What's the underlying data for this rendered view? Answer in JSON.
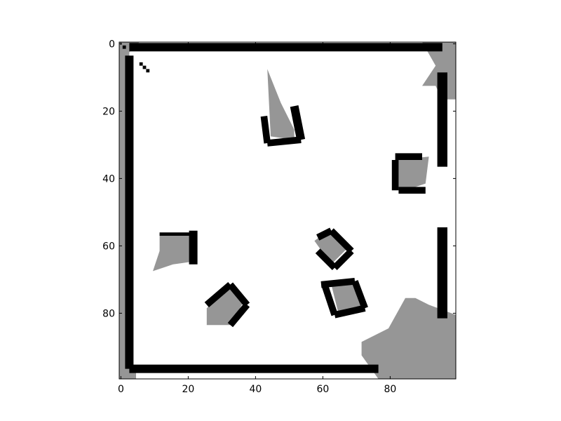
{
  "colors": {
    "free": "#ffffff",
    "unknown": "#969696",
    "occupied": "#000000",
    "axes": "#000000",
    "figure_background": "#ffffff"
  },
  "chart_data": {
    "type": "heatmap",
    "title": "",
    "xlabel": "",
    "ylabel": "",
    "grid": false,
    "colorbar": false,
    "shape": [
      100,
      100
    ],
    "xlim": [
      0,
      100
    ],
    "ylim": [
      100,
      0
    ],
    "x_ticks": [
      "0",
      "20",
      "40",
      "60",
      "80"
    ],
    "y_ticks": [
      "0",
      "20",
      "40",
      "60",
      "80"
    ],
    "legend_classes": [
      "free",
      "unknown",
      "occupied"
    ],
    "unknown_regions": [
      {
        "name": "left-margin",
        "points": [
          [
            0,
            0
          ],
          [
            3,
            0
          ],
          [
            3,
            100
          ],
          [
            0,
            100
          ]
        ]
      },
      {
        "name": "top-left-corner-wedge",
        "points": [
          [
            0,
            0
          ],
          [
            6,
            0
          ],
          [
            3,
            3
          ]
        ]
      },
      {
        "name": "top-right-corner-wedge",
        "points": [
          [
            90,
            0
          ],
          [
            100,
            0
          ],
          [
            100,
            17
          ],
          [
            96,
            17
          ],
          [
            94,
            13
          ],
          [
            90,
            13
          ],
          [
            94,
            7
          ]
        ]
      },
      {
        "name": "bottom-right-fan",
        "points": [
          [
            72,
            89
          ],
          [
            80,
            85
          ],
          [
            85,
            76
          ],
          [
            88,
            76
          ],
          [
            92,
            78
          ],
          [
            100,
            81
          ],
          [
            100,
            100
          ],
          [
            77,
            100
          ],
          [
            72,
            93
          ]
        ]
      },
      {
        "name": "bottom-left-corner",
        "points": [
          [
            0,
            97
          ],
          [
            5,
            97
          ],
          [
            5,
            100
          ],
          [
            0,
            100
          ]
        ]
      },
      {
        "name": "top-triangle",
        "points": [
          [
            44,
            8
          ],
          [
            48,
            18
          ],
          [
            52,
            26
          ],
          [
            52,
            29
          ],
          [
            45,
            28
          ]
        ]
      },
      {
        "name": "right-box-interior",
        "points": [
          [
            82,
            35
          ],
          [
            92,
            34
          ],
          [
            91,
            42
          ],
          [
            85,
            44
          ],
          [
            83,
            44
          ]
        ]
      },
      {
        "name": "left-box-interior",
        "points": [
          [
            12,
            57
          ],
          [
            23,
            57
          ],
          [
            23,
            65
          ],
          [
            16,
            66
          ],
          [
            10,
            68
          ],
          [
            12,
            62
          ]
        ]
      },
      {
        "name": "center-diamond-interior",
        "points": [
          [
            58,
            59
          ],
          [
            62,
            56
          ],
          [
            68,
            61
          ],
          [
            63,
            66
          ]
        ]
      },
      {
        "name": "lower-right-box-interior",
        "points": [
          [
            63,
            72
          ],
          [
            70,
            71
          ],
          [
            72,
            79
          ],
          [
            65,
            80
          ]
        ]
      },
      {
        "name": "lower-left-box-interior",
        "points": [
          [
            26,
            79
          ],
          [
            33,
            73
          ],
          [
            37,
            77
          ],
          [
            33,
            84
          ],
          [
            26,
            84
          ]
        ]
      }
    ],
    "occupied_walls": [
      {
        "name": "top-wall",
        "points": [
          [
            3,
            1.5
          ],
          [
            96,
            1.5
          ]
        ],
        "width": 2.5
      },
      {
        "name": "left-wall",
        "points": [
          [
            3,
            4
          ],
          [
            3,
            97
          ]
        ],
        "width": 2.5
      },
      {
        "name": "bottom-wall",
        "points": [
          [
            3,
            97
          ],
          [
            77,
            97
          ]
        ],
        "width": 2.5
      },
      {
        "name": "right-wall-upper",
        "points": [
          [
            96,
            9
          ],
          [
            96,
            37
          ]
        ],
        "width": 3
      },
      {
        "name": "right-wall-lower",
        "points": [
          [
            96,
            55
          ],
          [
            96,
            82
          ]
        ],
        "width": 3
      },
      {
        "name": "top-triangle-wall-right",
        "points": [
          [
            52,
            19
          ],
          [
            54,
            29
          ]
        ],
        "width": 2.5
      },
      {
        "name": "top-triangle-wall-bottom",
        "points": [
          [
            44,
            30
          ],
          [
            54,
            29
          ]
        ],
        "width": 2
      },
      {
        "name": "top-triangle-wall-left",
        "points": [
          [
            43,
            22
          ],
          [
            44,
            30
          ]
        ],
        "width": 2
      },
      {
        "name": "right-box-wall-left",
        "points": [
          [
            82,
            35
          ],
          [
            82,
            44
          ]
        ],
        "width": 2
      },
      {
        "name": "right-box-wall-top",
        "points": [
          [
            82,
            34
          ],
          [
            90,
            34
          ]
        ],
        "width": 2
      },
      {
        "name": "right-box-wall-bottom",
        "points": [
          [
            83,
            44
          ],
          [
            91,
            44
          ]
        ],
        "width": 2
      },
      {
        "name": "left-box-wall-right",
        "points": [
          [
            22,
            56
          ],
          [
            22,
            66
          ]
        ],
        "width": 2.5
      },
      {
        "name": "left-box-wall-top",
        "points": [
          [
            12,
            57
          ],
          [
            22,
            57
          ]
        ],
        "width": 1
      },
      {
        "name": "center-diamond-edge-ne",
        "points": [
          [
            59,
            58
          ],
          [
            63,
            56
          ]
        ],
        "width": 2
      },
      {
        "name": "center-diamond-edge-se",
        "points": [
          [
            63,
            56
          ],
          [
            69,
            62
          ]
        ],
        "width": 2
      },
      {
        "name": "center-diamond-edge-sw",
        "points": [
          [
            69,
            62
          ],
          [
            64,
            67
          ]
        ],
        "width": 2
      },
      {
        "name": "center-diamond-edge-nw",
        "points": [
          [
            64,
            67
          ],
          [
            59,
            62
          ]
        ],
        "width": 2
      },
      {
        "name": "lower-right-box-wall-top",
        "points": [
          [
            60,
            72
          ],
          [
            70,
            71
          ]
        ],
        "width": 2
      },
      {
        "name": "lower-right-box-wall-right",
        "points": [
          [
            70,
            71
          ],
          [
            73,
            79
          ]
        ],
        "width": 2
      },
      {
        "name": "lower-right-box-wall-bottom",
        "points": [
          [
            64,
            81
          ],
          [
            73,
            79
          ]
        ],
        "width": 2
      },
      {
        "name": "lower-right-box-wall-left",
        "points": [
          [
            61,
            72
          ],
          [
            64,
            81
          ]
        ],
        "width": 2
      },
      {
        "name": "lower-left-box-wall-ne",
        "points": [
          [
            33,
            72
          ],
          [
            38,
            78
          ]
        ],
        "width": 2
      },
      {
        "name": "lower-left-box-wall-nw",
        "points": [
          [
            26,
            78
          ],
          [
            33,
            72
          ]
        ],
        "width": 2
      },
      {
        "name": "lower-left-box-wall-se",
        "points": [
          [
            38,
            78
          ],
          [
            33,
            84
          ]
        ],
        "width": 2
      }
    ],
    "occupied_cells": [
      [
        1,
        1
      ],
      [
        6,
        6
      ],
      [
        7,
        7
      ],
      [
        8,
        8
      ]
    ]
  }
}
